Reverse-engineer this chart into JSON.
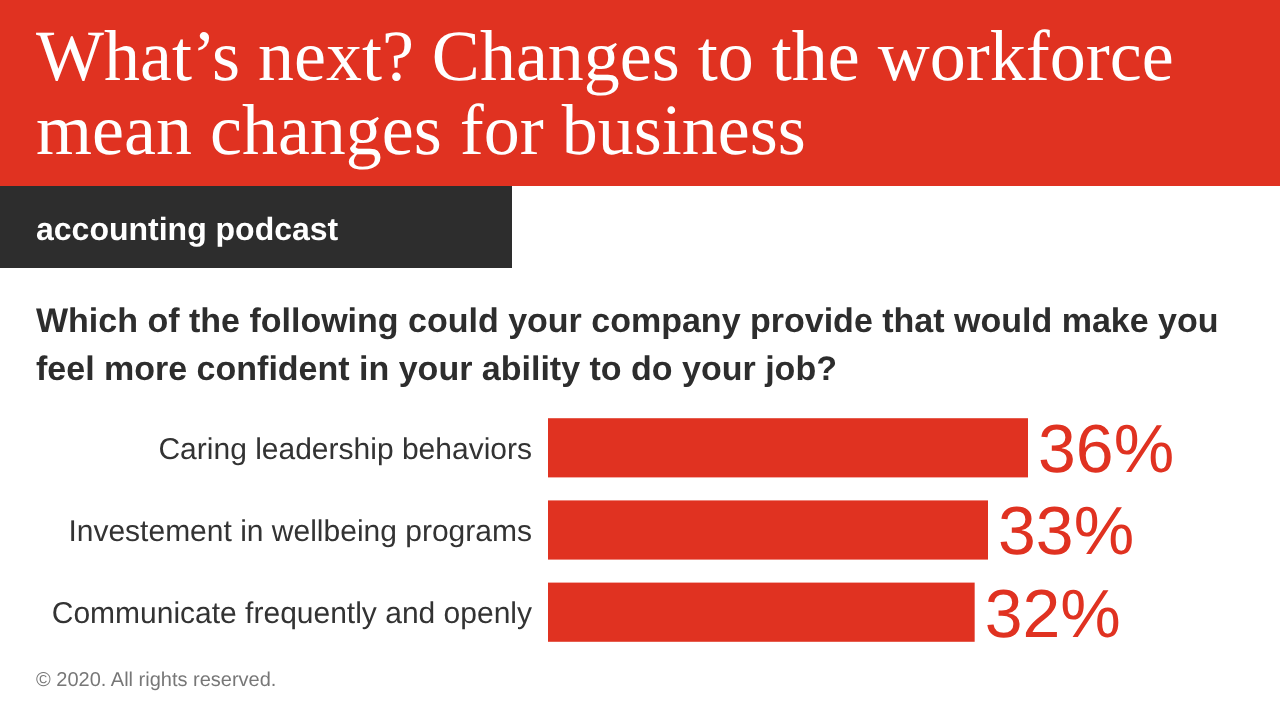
{
  "chart_data": {
    "type": "bar",
    "orientation": "horizontal",
    "title": "What’s next? Changes to the workforce mean changes for business",
    "subtitle": "accounting podcast",
    "annotations": [
      "Which of the following could your company provide that would make you feel more confident in your ability to do your job?",
      "© 2020. All rights reserved."
    ],
    "categories": [
      "Caring leadership behaviors",
      "Investement in wellbeing programs",
      "Communicate frequently and openly"
    ],
    "values": [
      36,
      33,
      32
    ],
    "value_labels": [
      "36%",
      "33%",
      "32%"
    ],
    "color": "#e03221"
  }
}
